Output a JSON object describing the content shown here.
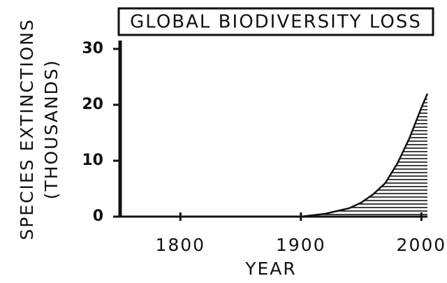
{
  "chart_data": {
    "type": "area",
    "title": "GLOBAL BIODIVERSITY LOSS",
    "xlabel": "YEAR",
    "ylabel": [
      "SPECIES EXTINCTIONS",
      "(THOUSANDS)"
    ],
    "x": [
      1750,
      1800,
      1850,
      1900,
      1920,
      1940,
      1950,
      1960,
      1970,
      1980,
      1990,
      2000,
      2005
    ],
    "values": [
      0,
      0,
      0,
      0,
      0.5,
      1.5,
      2.5,
      4,
      6,
      9.5,
      14,
      19.5,
      22
    ],
    "color": "#111111",
    "xlim": [
      1750,
      2005
    ],
    "ylim": [
      0,
      31.5
    ],
    "xticks": [
      1800,
      1900,
      2000
    ],
    "yticks": [
      0,
      10,
      20,
      30
    ]
  }
}
